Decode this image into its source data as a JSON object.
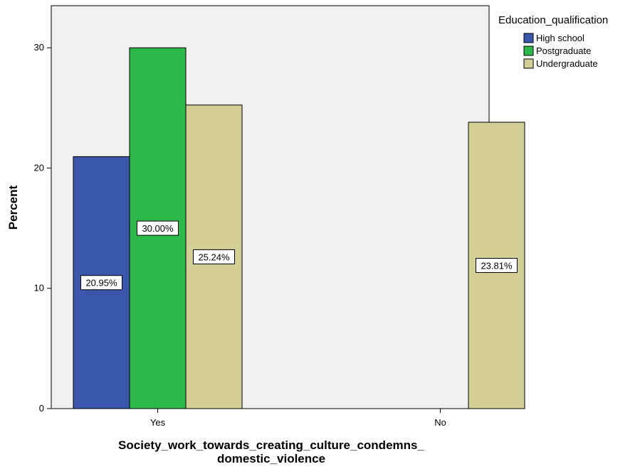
{
  "chart_data": {
    "type": "bar",
    "categories": [
      "Yes",
      "No"
    ],
    "series": [
      {
        "name": "High school",
        "color": "#3a56ad",
        "values": [
          20.95,
          null
        ],
        "labels": [
          "20.95%",
          null
        ]
      },
      {
        "name": "Postgraduate",
        "color": "#2db84a",
        "values": [
          30.0,
          null
        ],
        "labels": [
          "30.00%",
          null
        ]
      },
      {
        "name": "Undergraduate",
        "color": "#d4cf97",
        "values": [
          25.24,
          23.81
        ],
        "labels": [
          "25.24%",
          "23.81%"
        ]
      }
    ],
    "xlabel_line1": "Society_work_towards_creating_culture_condemns_",
    "xlabel_line2": "domestic_violence",
    "ylabel": "Percent",
    "ylim": [
      0,
      33.5
    ],
    "yticks": [
      0,
      10,
      20,
      30
    ],
    "legend_title": "Education_qualification",
    "legend_position": "top-right",
    "plot_background": "#f0f0f0",
    "grid": false
  }
}
